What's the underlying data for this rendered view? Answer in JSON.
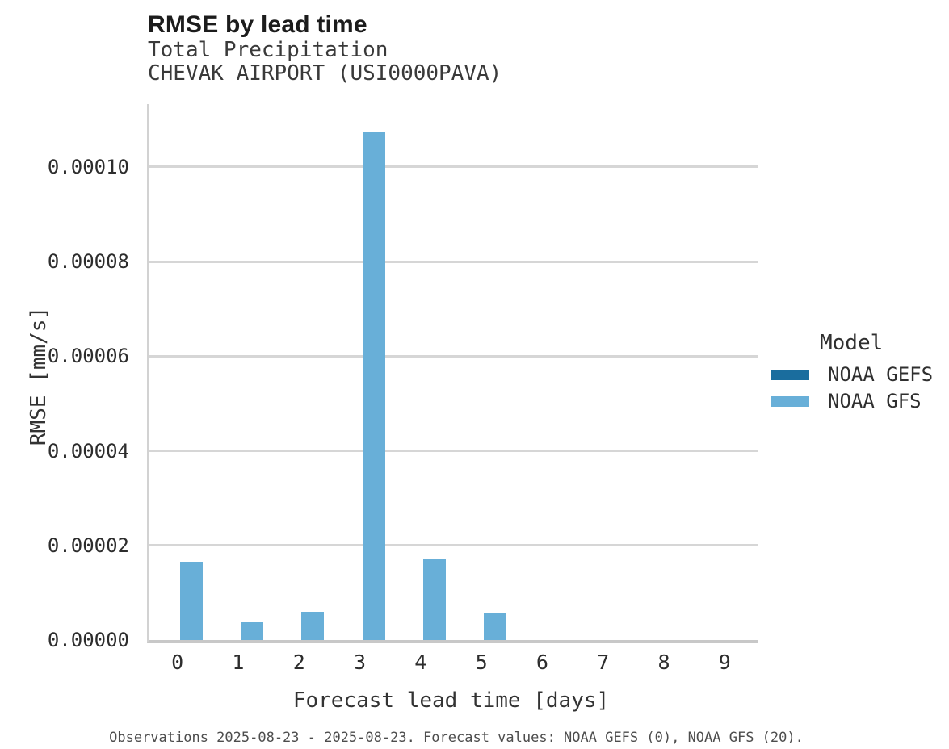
{
  "header": {
    "title": "RMSE by lead time",
    "subtitle_line1": "Total Precipitation",
    "subtitle_line2": "CHEVAK AIRPORT (USI0000PAVA)"
  },
  "legend": {
    "title": "Model",
    "entries": [
      {
        "label": "NOAA GEFS",
        "color": "#1a6d9e"
      },
      {
        "label": "NOAA GFS",
        "color": "#68afd8"
      }
    ]
  },
  "footer": {
    "text": "Observations 2025-08-23 - 2025-08-23. Forecast values: NOAA GEFS (0), NOAA GFS (20)."
  },
  "colors": {
    "grid": "#d6d6d6",
    "axis_spine": "#d2d2d2",
    "axis_bottom": "#c8c8c8",
    "gefs": "#1a6d9e",
    "gfs": "#68afd8"
  },
  "chart_data": {
    "type": "bar",
    "title": "RMSE by lead time",
    "subtitle": [
      "Total Precipitation",
      "CHEVAK AIRPORT (USI0000PAVA)"
    ],
    "categories": [
      "0",
      "1",
      "2",
      "3",
      "4",
      "5",
      "6",
      "7",
      "8",
      "9"
    ],
    "series": [
      {
        "name": "NOAA GEFS",
        "color": "#1a6d9e",
        "values": [
          0,
          0,
          0,
          0,
          0,
          0,
          0,
          0,
          0,
          0
        ]
      },
      {
        "name": "NOAA GFS",
        "color": "#68afd8",
        "values": [
          1.65e-05,
          3.8e-06,
          6e-06,
          0.0001075,
          1.7e-05,
          5.7e-06,
          0,
          0,
          0,
          0
        ]
      }
    ],
    "xlabel": "Forecast lead time [days]",
    "ylabel": "RMSE [mm/s]",
    "ytick_labels": [
      "0.00000",
      "0.00002",
      "0.00004",
      "0.00006",
      "0.00008",
      "0.00010"
    ],
    "ytick_values": [
      0,
      2e-05,
      4e-05,
      6e-05,
      8e-05,
      0.0001
    ],
    "ylim": [
      0,
      0.0001133
    ],
    "grid": "horizontal",
    "legend_title": "Model",
    "legend_position": "right",
    "caption": "Observations 2025-08-23 - 2025-08-23. Forecast values: NOAA GEFS (0), NOAA GFS (20)."
  }
}
